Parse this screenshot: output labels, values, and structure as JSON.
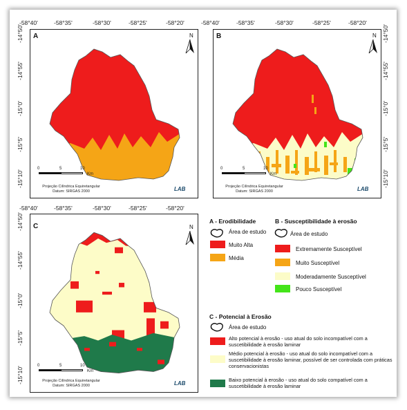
{
  "lon_ticks": [
    "-58°40'",
    "-58°35'",
    "-58°30'",
    "-58°25'",
    "-58°20'"
  ],
  "lat_ticks": [
    "-14°50'",
    "-14°55'",
    "-15°0'",
    "-15°5'",
    "-15°10'"
  ],
  "panels": {
    "a": {
      "label": "A"
    },
    "b": {
      "label": "B"
    },
    "c": {
      "label": "C"
    }
  },
  "scale": {
    "t0": "0",
    "t1": "5",
    "t2": "10",
    "unit": "Km"
  },
  "projection": {
    "line1": "Projeção Cilíndrica Equiretangular",
    "line2": "Datum: SIRGAS 2000"
  },
  "north_label": "N",
  "logo_text": "LAB",
  "legend_a": {
    "title": "A - Erodibilidade",
    "study_area": "Área de estudo",
    "items": [
      {
        "label": "Muito Alta",
        "color": "#ee1c1c"
      },
      {
        "label": "Média",
        "color": "#f5a516"
      }
    ]
  },
  "legend_b": {
    "title": "B - Susceptibilidade à erosão",
    "study_area": "Área de estudo",
    "items": [
      {
        "label": "Extremamente Susceptível",
        "color": "#ee1c1c"
      },
      {
        "label": "Muito Susceptível",
        "color": "#f5a516"
      },
      {
        "label": "Moderadamente Susceptível",
        "color": "#fcfcc8"
      },
      {
        "label": "Pouco Susceptível",
        "color": "#44e41a"
      }
    ]
  },
  "legend_c": {
    "title": "C - Potencial à Erosão",
    "study_area": "Área de estudo",
    "items": [
      {
        "label": "Alto potencial à erosão - uso atual do solo incompatível com a suscetibilidade à erosão laminar",
        "color": "#ee1c1c"
      },
      {
        "label": "Médio potencial à erosão - uso atual do solo incompatível com a suscetibilidade à erosão laminar, possível de ser controlada com práticas conservacionistas",
        "color": "#fdfcc8"
      },
      {
        "label": "Baixo potencial à erosão - uso atual do solo compatível com a suscetibilidade à erosão laminar",
        "color": "#1f7a4a"
      }
    ]
  }
}
